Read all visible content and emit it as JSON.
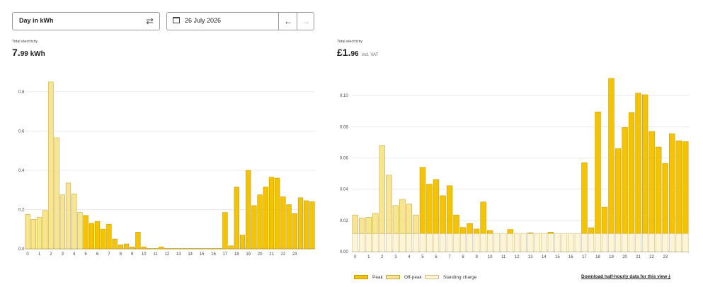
{
  "controls": {
    "view_value": "Day in",
    "view_unit": "kWh",
    "date": "26 July 2026"
  },
  "totals": {
    "energy_label": "Total electricity",
    "energy_int": "7.",
    "energy_dec": "99 kWh",
    "cost_label": "Total electricity",
    "cost_int": "£1.",
    "cost_dec": "96",
    "cost_suffix": "incl. VAT"
  },
  "legend": {
    "peak": "Peak",
    "offpeak": "Off-peak",
    "standing": "Standing charge"
  },
  "download_label": "Download half-hourly data for this view",
  "colors": {
    "peak": "#f5c400",
    "peak_edge": "#c79a00",
    "offpeak": "#f8e58f",
    "offpeak_edge": "#c4aa3a",
    "standing": "#fdf5d6",
    "standing_edge": "#cfc08a",
    "grid": "#e4e4e4",
    "axis": "#888888"
  },
  "chart_data": [
    {
      "type": "bar",
      "title": "",
      "xlabel": "",
      "ylabel": "",
      "x_ticks": [
        "0",
        "1",
        "2",
        "3",
        "4",
        "5",
        "6",
        "7",
        "8",
        "9",
        "10",
        "11",
        "12",
        "13",
        "14",
        "15",
        "16",
        "17",
        "18",
        "19",
        "20",
        "21",
        "22",
        "23"
      ],
      "y_ticks": [
        "0.0",
        "0.2",
        "0.4",
        "0.6",
        "0.8"
      ],
      "ylim": [
        0,
        0.9
      ],
      "bucket": "half-hour",
      "values": [
        0.175,
        0.15,
        0.16,
        0.195,
        0.85,
        0.565,
        0.275,
        0.335,
        0.28,
        0.185,
        0.17,
        0.13,
        0.14,
        0.1,
        0.125,
        0.05,
        0.02,
        0.025,
        0.01,
        0.085,
        0.01,
        0.0,
        0.0,
        0.01,
        0.0,
        0.0,
        0.0,
        0.0,
        0.0,
        0.0,
        0.0,
        0.0,
        0.0,
        0.0,
        0.185,
        0.015,
        0.315,
        0.07,
        0.4,
        0.22,
        0.275,
        0.315,
        0.365,
        0.36,
        0.265,
        0.225,
        0.18,
        0.26,
        0.245,
        0.24
      ],
      "rate": [
        "offpeak",
        "offpeak",
        "offpeak",
        "offpeak",
        "offpeak",
        "offpeak",
        "offpeak",
        "offpeak",
        "offpeak",
        "offpeak",
        "peak",
        "peak",
        "peak",
        "peak",
        "peak",
        "peak",
        "peak",
        "peak",
        "peak",
        "peak",
        "peak",
        "peak",
        "peak",
        "peak",
        "peak",
        "peak",
        "peak",
        "peak",
        "peak",
        "peak",
        "peak",
        "peak",
        "peak",
        "peak",
        "peak",
        "peak",
        "peak",
        "peak",
        "peak",
        "peak",
        "peak",
        "peak",
        "peak",
        "peak",
        "peak",
        "peak",
        "peak",
        "peak",
        "peak",
        "peak"
      ]
    },
    {
      "type": "bar",
      "stacked": true,
      "title": "",
      "xlabel": "",
      "ylabel": "",
      "x_ticks": [
        "0",
        "1",
        "2",
        "3",
        "4",
        "5",
        "6",
        "7",
        "8",
        "9",
        "10",
        "11",
        "12",
        "13",
        "14",
        "15",
        "16",
        "17",
        "18",
        "19",
        "20",
        "21",
        "22",
        "23"
      ],
      "y_ticks": [
        "0.00",
        "0.02",
        "0.04",
        "0.06",
        "0.08",
        "0.10"
      ],
      "ylim": [
        0,
        0.115
      ],
      "standing_charge": 0.0117,
      "totals": [
        0.0235,
        0.0215,
        0.022,
        0.0245,
        0.068,
        0.049,
        0.0295,
        0.0335,
        0.0305,
        0.0235,
        0.054,
        0.0432,
        0.0462,
        0.0358,
        0.0422,
        0.0235,
        0.0155,
        0.018,
        0.0145,
        0.0318,
        0.0135,
        0.0117,
        0.0117,
        0.0142,
        0.0117,
        0.0117,
        0.012,
        0.0117,
        0.0117,
        0.0125,
        0.0117,
        0.0117,
        0.0117,
        0.0117,
        0.057,
        0.0153,
        0.0895,
        0.0285,
        0.111,
        0.066,
        0.0795,
        0.089,
        0.1015,
        0.1005,
        0.077,
        0.067,
        0.0565,
        0.0755,
        0.071,
        0.0705
      ],
      "rate": [
        "offpeak",
        "offpeak",
        "offpeak",
        "offpeak",
        "offpeak",
        "offpeak",
        "offpeak",
        "offpeak",
        "offpeak",
        "offpeak",
        "peak",
        "peak",
        "peak",
        "peak",
        "peak",
        "peak",
        "peak",
        "peak",
        "peak",
        "peak",
        "peak",
        "peak",
        "peak",
        "peak",
        "peak",
        "peak",
        "peak",
        "peak",
        "peak",
        "peak",
        "peak",
        "peak",
        "peak",
        "peak",
        "peak",
        "peak",
        "peak",
        "peak",
        "peak",
        "peak",
        "peak",
        "peak",
        "peak",
        "peak",
        "peak",
        "peak",
        "peak",
        "peak",
        "peak",
        "peak"
      ]
    }
  ]
}
